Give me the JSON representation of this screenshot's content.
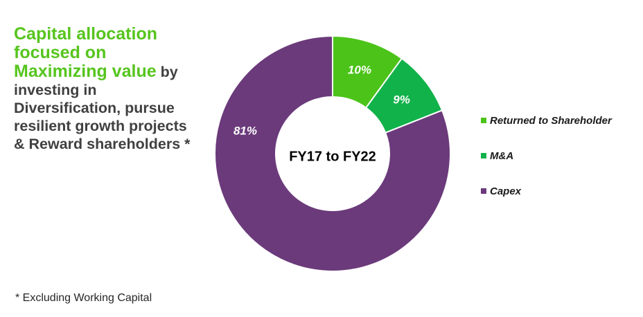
{
  "headline": {
    "green_lines": [
      "Capital allocation",
      "focused on",
      "Maximizing value"
    ],
    "by_word": "by",
    "gray_lines": [
      "investing in",
      "Diversification, pursue",
      "resilient growth projects",
      "& Reward shareholders *"
    ]
  },
  "footnote": "* Excluding Working Capital",
  "chart_data": {
    "type": "pie",
    "donut": true,
    "center_label": "FY17 to FY22",
    "categories": [
      "Returned to Shareholder",
      "M&A",
      "Capex"
    ],
    "values": [
      10,
      9,
      81
    ],
    "data_labels": [
      "10%",
      "9%",
      "81%"
    ],
    "colors": [
      "#4cc319",
      "#12b24a",
      "#6b3a7b"
    ],
    "legend_position": "right"
  }
}
